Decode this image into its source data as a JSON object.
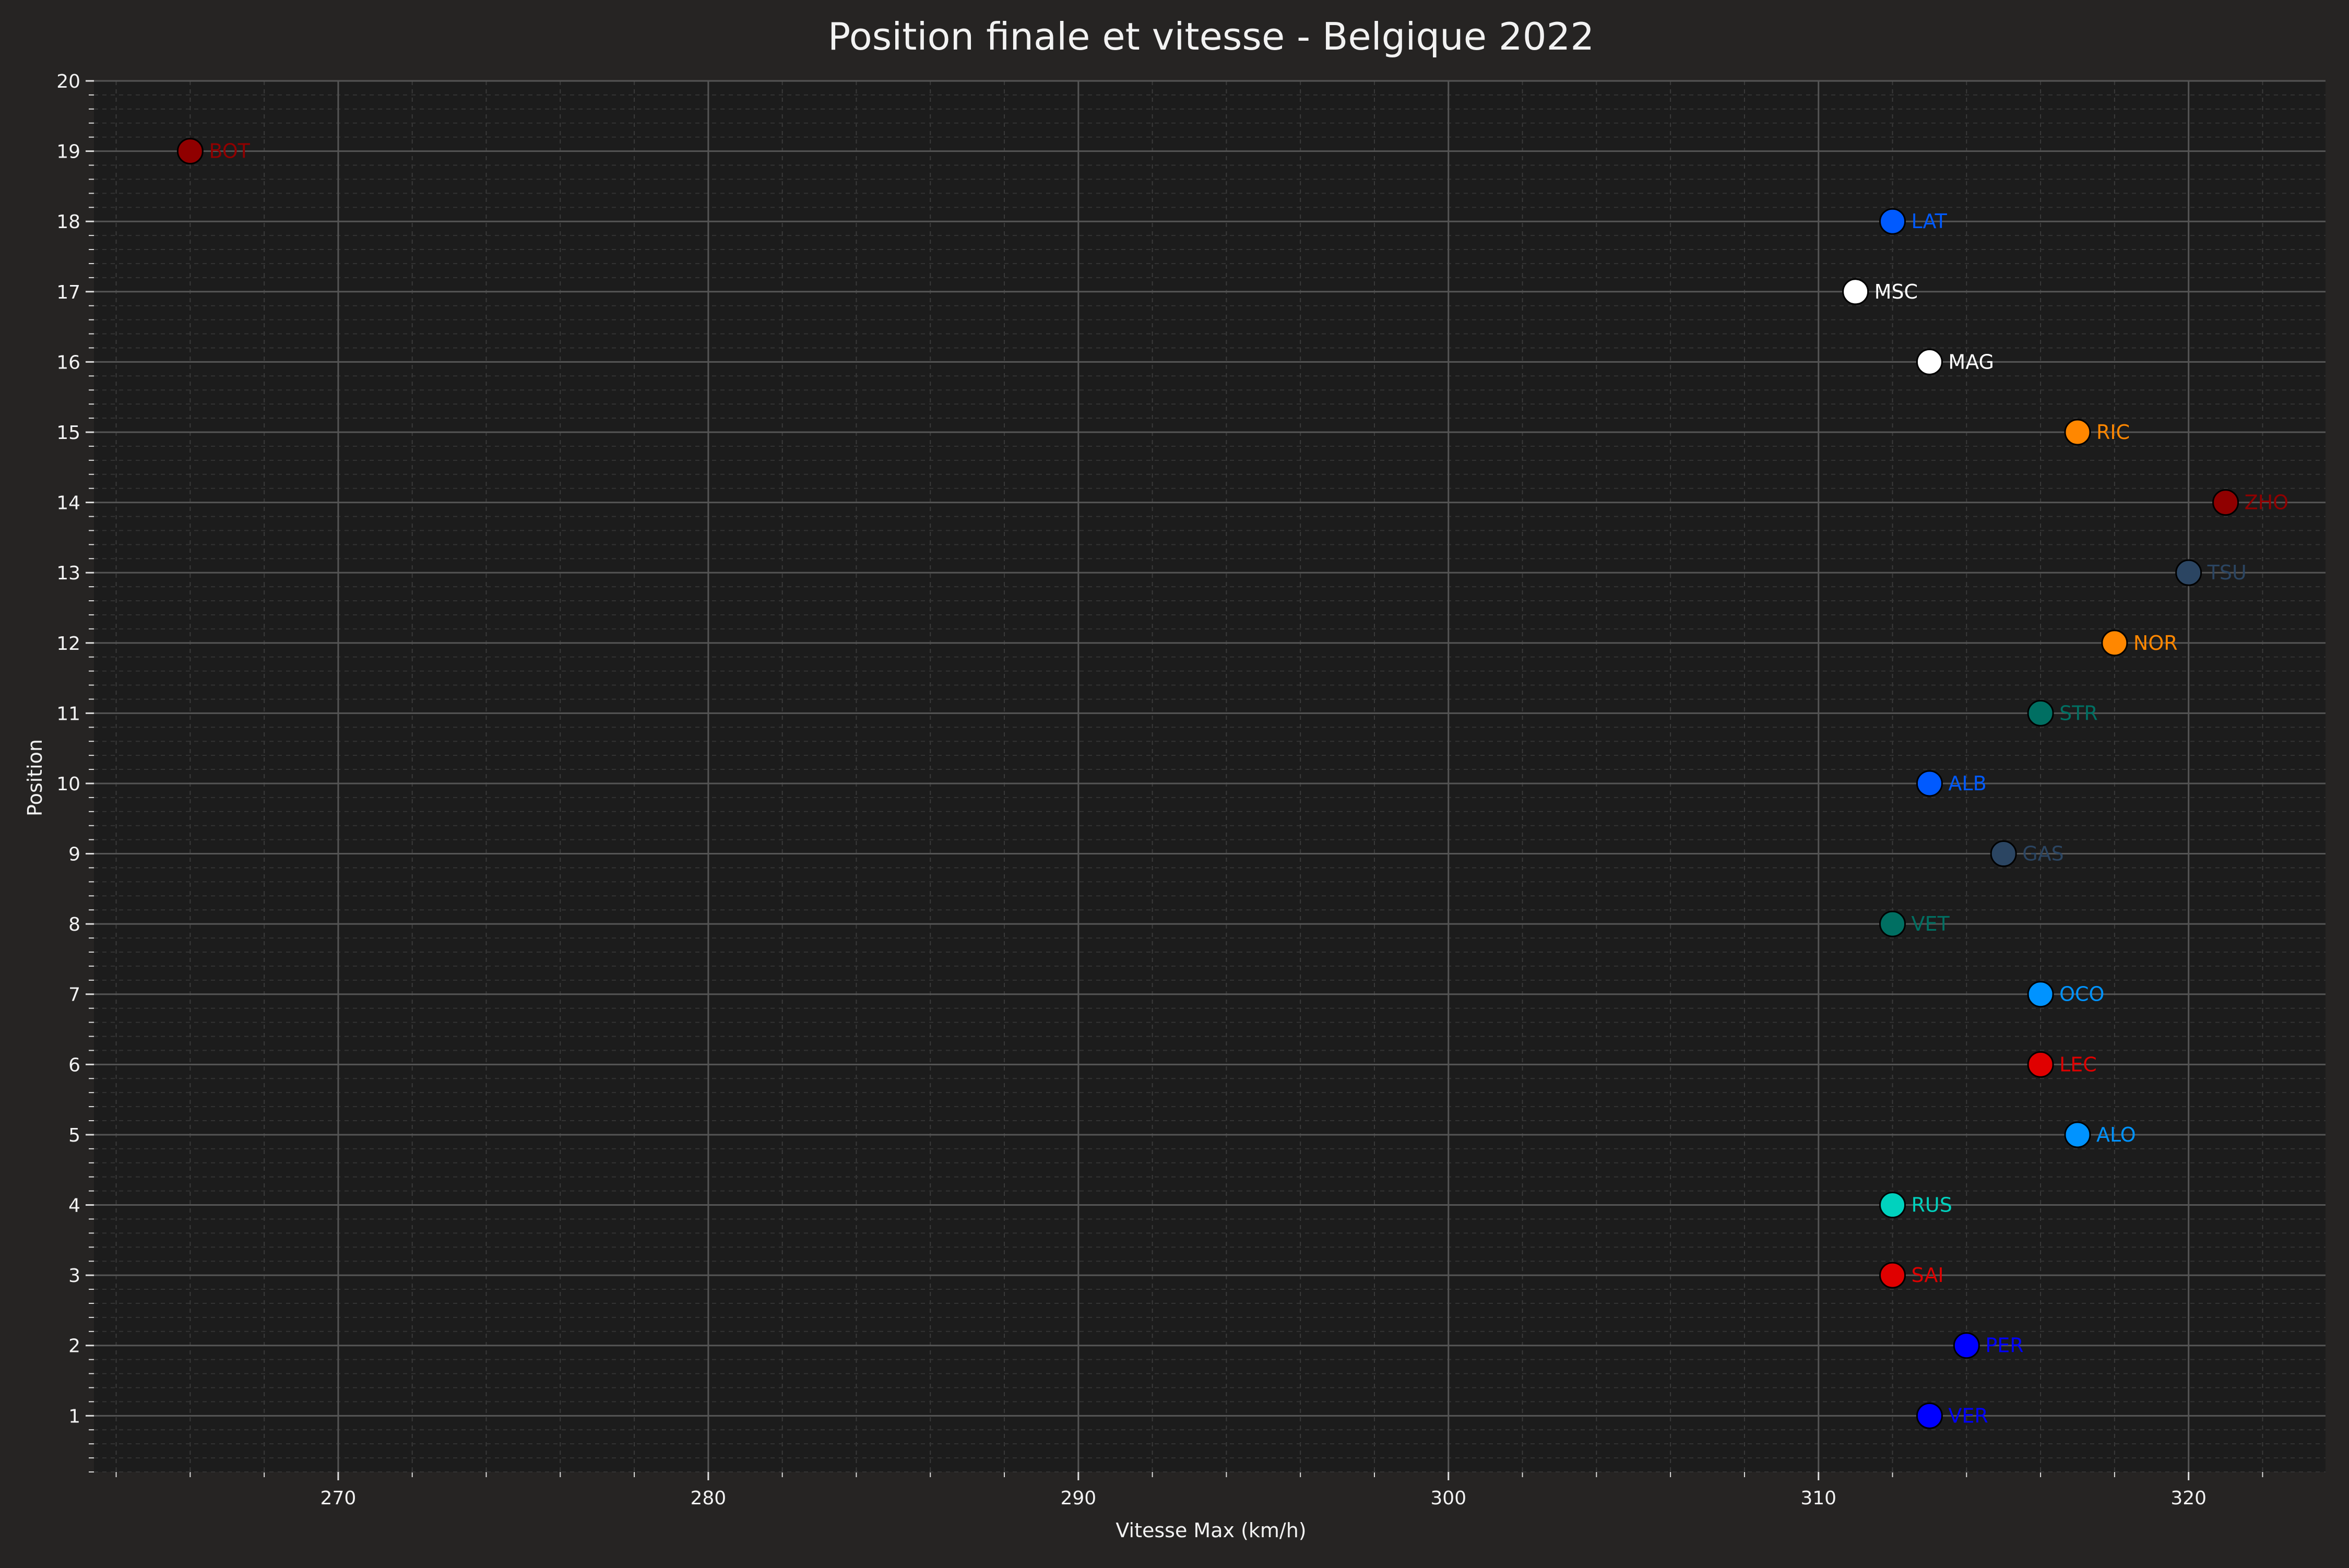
{
  "chart_data": {
    "type": "scatter",
    "title": "Position finale et vitesse - Belgique 2022",
    "xlabel": "Vitesse Max (km/h)",
    "ylabel": "Position",
    "xlim": [
      263.4,
      323.7
    ],
    "ylim": [
      0.2,
      20
    ],
    "x_ticks": [
      270,
      280,
      290,
      300,
      310,
      320
    ],
    "y_ticks": [
      1,
      2,
      3,
      4,
      5,
      6,
      7,
      8,
      9,
      10,
      11,
      12,
      13,
      14,
      15,
      16,
      17,
      18,
      19,
      20
    ],
    "grid": true,
    "minor_grid": true,
    "background": "#1c1c1c",
    "figure_background": "#262423",
    "points": [
      {
        "label": "VER",
        "x": 313,
        "y": 1,
        "color": "#0000ff"
      },
      {
        "label": "PER",
        "x": 314,
        "y": 2,
        "color": "#0000ff"
      },
      {
        "label": "SAI",
        "x": 312,
        "y": 3,
        "color": "#e00000"
      },
      {
        "label": "RUS",
        "x": 312,
        "y": 4,
        "color": "#00d2be"
      },
      {
        "label": "ALO",
        "x": 317,
        "y": 5,
        "color": "#0093ff"
      },
      {
        "label": "LEC",
        "x": 316,
        "y": 6,
        "color": "#e00000"
      },
      {
        "label": "OCO",
        "x": 316,
        "y": 7,
        "color": "#0093ff"
      },
      {
        "label": "VET",
        "x": 312,
        "y": 8,
        "color": "#006f62"
      },
      {
        "label": "GAS",
        "x": 315,
        "y": 9,
        "color": "#2b4562"
      },
      {
        "label": "ALB",
        "x": 313,
        "y": 10,
        "color": "#005aff"
      },
      {
        "label": "STR",
        "x": 316,
        "y": 11,
        "color": "#006f62"
      },
      {
        "label": "NOR",
        "x": 318,
        "y": 12,
        "color": "#ff8700"
      },
      {
        "label": "TSU",
        "x": 320,
        "y": 13,
        "color": "#2b4562"
      },
      {
        "label": "ZHO",
        "x": 321,
        "y": 14,
        "color": "#900000"
      },
      {
        "label": "RIC",
        "x": 317,
        "y": 15,
        "color": "#ff8700"
      },
      {
        "label": "MAG",
        "x": 313,
        "y": 16,
        "color": "#ffffff"
      },
      {
        "label": "MSC",
        "x": 311,
        "y": 17,
        "color": "#ffffff"
      },
      {
        "label": "LAT",
        "x": 312,
        "y": 18,
        "color": "#005aff"
      },
      {
        "label": "BOT",
        "x": 266,
        "y": 19,
        "color": "#900000"
      }
    ]
  }
}
